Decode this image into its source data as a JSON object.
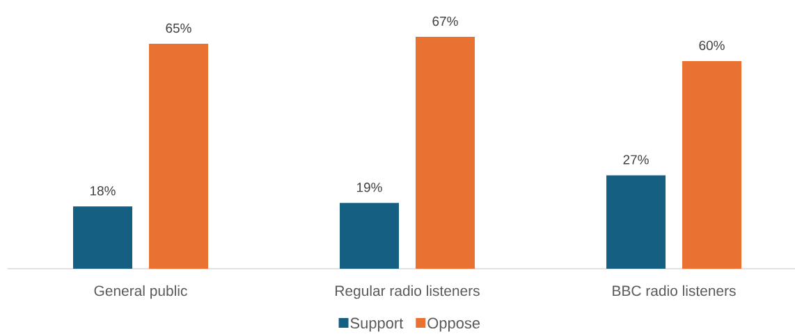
{
  "chart_data": {
    "type": "bar",
    "categories": [
      "General public",
      "Regular radio listeners",
      "BBC radio listeners"
    ],
    "series": [
      {
        "name": "Support",
        "color": "#156082",
        "values": [
          18,
          19,
          27
        ],
        "value_labels": [
          "18%",
          "19%",
          "27%"
        ]
      },
      {
        "name": "Oppose",
        "color": "#e97132",
        "values": [
          65,
          67,
          60
        ],
        "value_labels": [
          "65%",
          "67%",
          "60%"
        ]
      }
    ],
    "legend": "bottom"
  }
}
